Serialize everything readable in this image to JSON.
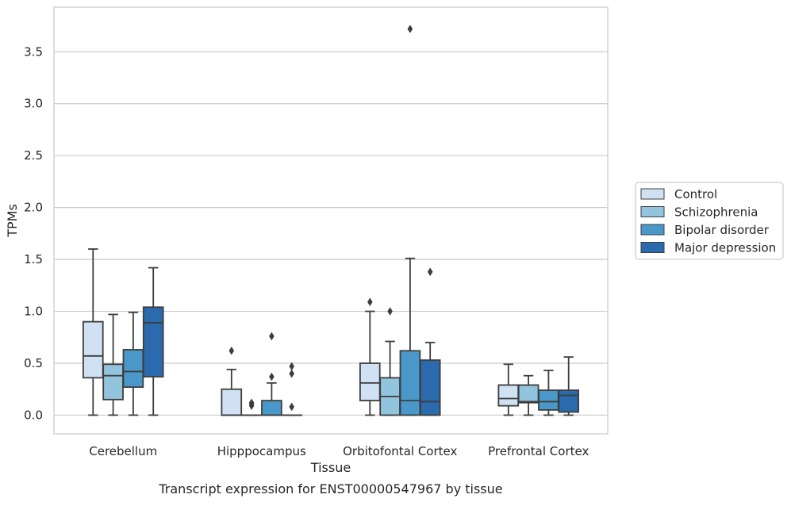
{
  "chart_data": {
    "type": "boxplot",
    "xlabel": "Tissue",
    "ylabel": "TPMs",
    "caption": "Transcript expression for ENST00000547967 by tissue",
    "ylim": [
      -0.18,
      3.93
    ],
    "yticks": [
      0.0,
      0.5,
      1.0,
      1.5,
      2.0,
      2.5,
      3.0,
      3.5
    ],
    "ytick_labels": [
      "0.0",
      "0.5",
      "1.0",
      "1.5",
      "2.0",
      "2.5",
      "3.0",
      "3.5"
    ],
    "grid": "horizontal",
    "legend_position": "right",
    "categories": [
      "Cerebellum",
      "Hipppocampus",
      "Orbitofontal Cortex",
      "Prefrontal Cortex"
    ],
    "series": [
      {
        "name": "Control",
        "color": "#cfe1f2",
        "boxes": [
          {
            "whislo": 0.0,
            "q1": 0.36,
            "med": 0.57,
            "q3": 0.9,
            "whishi": 1.6,
            "fliers": []
          },
          {
            "whislo": 0.0,
            "q1": 0.0,
            "med": 0.0,
            "q3": 0.25,
            "whishi": 0.44,
            "fliers": [
              0.62
            ]
          },
          {
            "whislo": 0.0,
            "q1": 0.14,
            "med": 0.31,
            "q3": 0.5,
            "whishi": 1.0,
            "fliers": [
              1.09
            ]
          },
          {
            "whislo": 0.0,
            "q1": 0.09,
            "med": 0.16,
            "q3": 0.29,
            "whishi": 0.49,
            "fliers": []
          }
        ]
      },
      {
        "name": "Schizophrenia",
        "color": "#93c4de",
        "boxes": [
          {
            "whislo": 0.0,
            "q1": 0.15,
            "med": 0.38,
            "q3": 0.49,
            "whishi": 0.97,
            "fliers": []
          },
          {
            "whislo": 0.0,
            "q1": 0.0,
            "med": 0.0,
            "q3": 0.0,
            "whishi": 0.0,
            "fliers": [
              0.09,
              0.11,
              0.12
            ]
          },
          {
            "whislo": 0.0,
            "q1": 0.0,
            "med": 0.18,
            "q3": 0.36,
            "whishi": 0.71,
            "fliers": [
              1.0
            ]
          },
          {
            "whislo": 0.0,
            "q1": 0.12,
            "med": 0.13,
            "q3": 0.29,
            "whishi": 0.38,
            "fliers": []
          }
        ]
      },
      {
        "name": "Bipolar disorder",
        "color": "#4a98c9",
        "boxes": [
          {
            "whislo": 0.0,
            "q1": 0.27,
            "med": 0.42,
            "q3": 0.63,
            "whishi": 0.99,
            "fliers": []
          },
          {
            "whislo": 0.0,
            "q1": 0.0,
            "med": 0.0,
            "q3": 0.14,
            "whishi": 0.31,
            "fliers": [
              0.37,
              0.76
            ]
          },
          {
            "whislo": 0.0,
            "q1": 0.0,
            "med": 0.14,
            "q3": 0.62,
            "whishi": 1.51,
            "fliers": [
              3.72
            ]
          },
          {
            "whislo": 0.0,
            "q1": 0.05,
            "med": 0.13,
            "q3": 0.24,
            "whishi": 0.43,
            "fliers": []
          }
        ]
      },
      {
        "name": "Major depression",
        "color": "#2a6aad",
        "boxes": [
          {
            "whislo": 0.0,
            "q1": 0.37,
            "med": 0.89,
            "q3": 1.04,
            "whishi": 1.42,
            "fliers": []
          },
          {
            "whislo": 0.0,
            "q1": 0.0,
            "med": 0.0,
            "q3": 0.0,
            "whishi": 0.0,
            "fliers": [
              0.08,
              0.4,
              0.47
            ]
          },
          {
            "whislo": 0.0,
            "q1": 0.0,
            "med": 0.13,
            "q3": 0.53,
            "whishi": 0.7,
            "fliers": [
              1.38
            ]
          },
          {
            "whislo": 0.0,
            "q1": 0.03,
            "med": 0.19,
            "q3": 0.24,
            "whishi": 0.56,
            "fliers": []
          }
        ]
      }
    ]
  }
}
